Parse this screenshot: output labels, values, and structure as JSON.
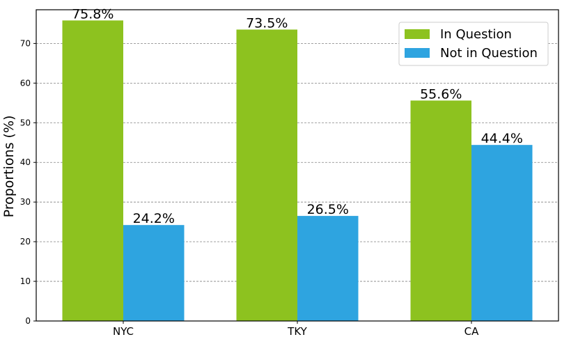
{
  "chart_data": {
    "type": "bar",
    "categories": [
      "NYC",
      "TKY",
      "CA"
    ],
    "series": [
      {
        "name": "In Question",
        "values": [
          75.8,
          73.5,
          55.6
        ],
        "labels": [
          "75.8%",
          "73.5%",
          "55.6%"
        ],
        "color": "#8dc21f"
      },
      {
        "name": "Not in Question",
        "values": [
          24.2,
          26.5,
          44.4
        ],
        "labels": [
          "24.2%",
          "26.5%",
          "44.4%"
        ],
        "color": "#2ea4e0"
      }
    ],
    "title": "",
    "xlabel": "",
    "ylabel": "Proportions (%)",
    "ylim": [
      0,
      78.5
    ],
    "yticks": [
      0,
      10,
      20,
      30,
      40,
      50,
      60,
      70
    ],
    "grid": "horizontal-dashed",
    "legend_position": "top-right"
  }
}
